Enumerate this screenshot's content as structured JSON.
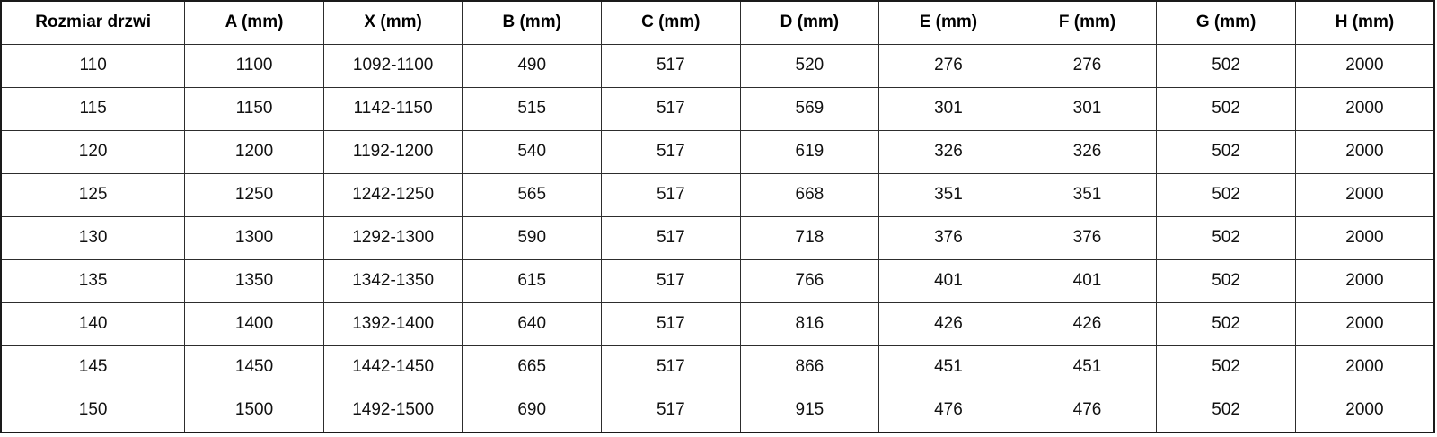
{
  "table": {
    "name": "door-dimensions-table",
    "columns": [
      "Rozmiar drzwi",
      "A (mm)",
      "X (mm)",
      "B (mm)",
      "C (mm)",
      "D (mm)",
      "E (mm)",
      "F (mm)",
      "G (mm)",
      "H (mm)"
    ],
    "rows": [
      [
        "110",
        "1100",
        "1092-1100",
        "490",
        "517",
        "520",
        "276",
        "276",
        "502",
        "2000"
      ],
      [
        "115",
        "1150",
        "1142-1150",
        "515",
        "517",
        "569",
        "301",
        "301",
        "502",
        "2000"
      ],
      [
        "120",
        "1200",
        "1192-1200",
        "540",
        "517",
        "619",
        "326",
        "326",
        "502",
        "2000"
      ],
      [
        "125",
        "1250",
        "1242-1250",
        "565",
        "517",
        "668",
        "351",
        "351",
        "502",
        "2000"
      ],
      [
        "130",
        "1300",
        "1292-1300",
        "590",
        "517",
        "718",
        "376",
        "376",
        "502",
        "2000"
      ],
      [
        "135",
        "1350",
        "1342-1350",
        "615",
        "517",
        "766",
        "401",
        "401",
        "502",
        "2000"
      ],
      [
        "140",
        "1400",
        "1392-1400",
        "640",
        "517",
        "816",
        "426",
        "426",
        "502",
        "2000"
      ],
      [
        "145",
        "1450",
        "1442-1450",
        "665",
        "517",
        "866",
        "451",
        "451",
        "502",
        "2000"
      ],
      [
        "150",
        "1500",
        "1492-1500",
        "690",
        "517",
        "915",
        "476",
        "476",
        "502",
        "2000"
      ]
    ]
  },
  "colors": {
    "background": "#ffffff",
    "text": "#111111",
    "border": "#2d2d2d",
    "outer_border": "#1a1a1a"
  },
  "chart_data": {
    "type": "table",
    "title": "",
    "categories": [
      "Rozmiar drzwi",
      "A (mm)",
      "X (mm)",
      "B (mm)",
      "C (mm)",
      "D (mm)",
      "E (mm)",
      "F (mm)",
      "G (mm)",
      "H (mm)"
    ],
    "series": [
      {
        "name": "110",
        "values": [
          "1100",
          "1092-1100",
          "490",
          "517",
          "520",
          "276",
          "276",
          "502",
          "2000"
        ]
      },
      {
        "name": "115",
        "values": [
          "1150",
          "1142-1150",
          "515",
          "517",
          "569",
          "301",
          "301",
          "502",
          "2000"
        ]
      },
      {
        "name": "120",
        "values": [
          "1200",
          "1192-1200",
          "540",
          "517",
          "619",
          "326",
          "326",
          "502",
          "2000"
        ]
      },
      {
        "name": "125",
        "values": [
          "1250",
          "1242-1250",
          "565",
          "517",
          "668",
          "351",
          "351",
          "502",
          "2000"
        ]
      },
      {
        "name": "130",
        "values": [
          "1300",
          "1292-1300",
          "590",
          "517",
          "718",
          "376",
          "376",
          "502",
          "2000"
        ]
      },
      {
        "name": "135",
        "values": [
          "1350",
          "1342-1350",
          "615",
          "517",
          "766",
          "401",
          "401",
          "502",
          "2000"
        ]
      },
      {
        "name": "140",
        "values": [
          "1400",
          "1392-1400",
          "640",
          "517",
          "816",
          "426",
          "426",
          "502",
          "2000"
        ]
      },
      {
        "name": "145",
        "values": [
          "1450",
          "1442-1450",
          "665",
          "517",
          "866",
          "451",
          "451",
          "502",
          "2000"
        ]
      },
      {
        "name": "150",
        "values": [
          "1500",
          "1492-1500",
          "690",
          "517",
          "915",
          "476",
          "476",
          "502",
          "2000"
        ]
      }
    ]
  }
}
